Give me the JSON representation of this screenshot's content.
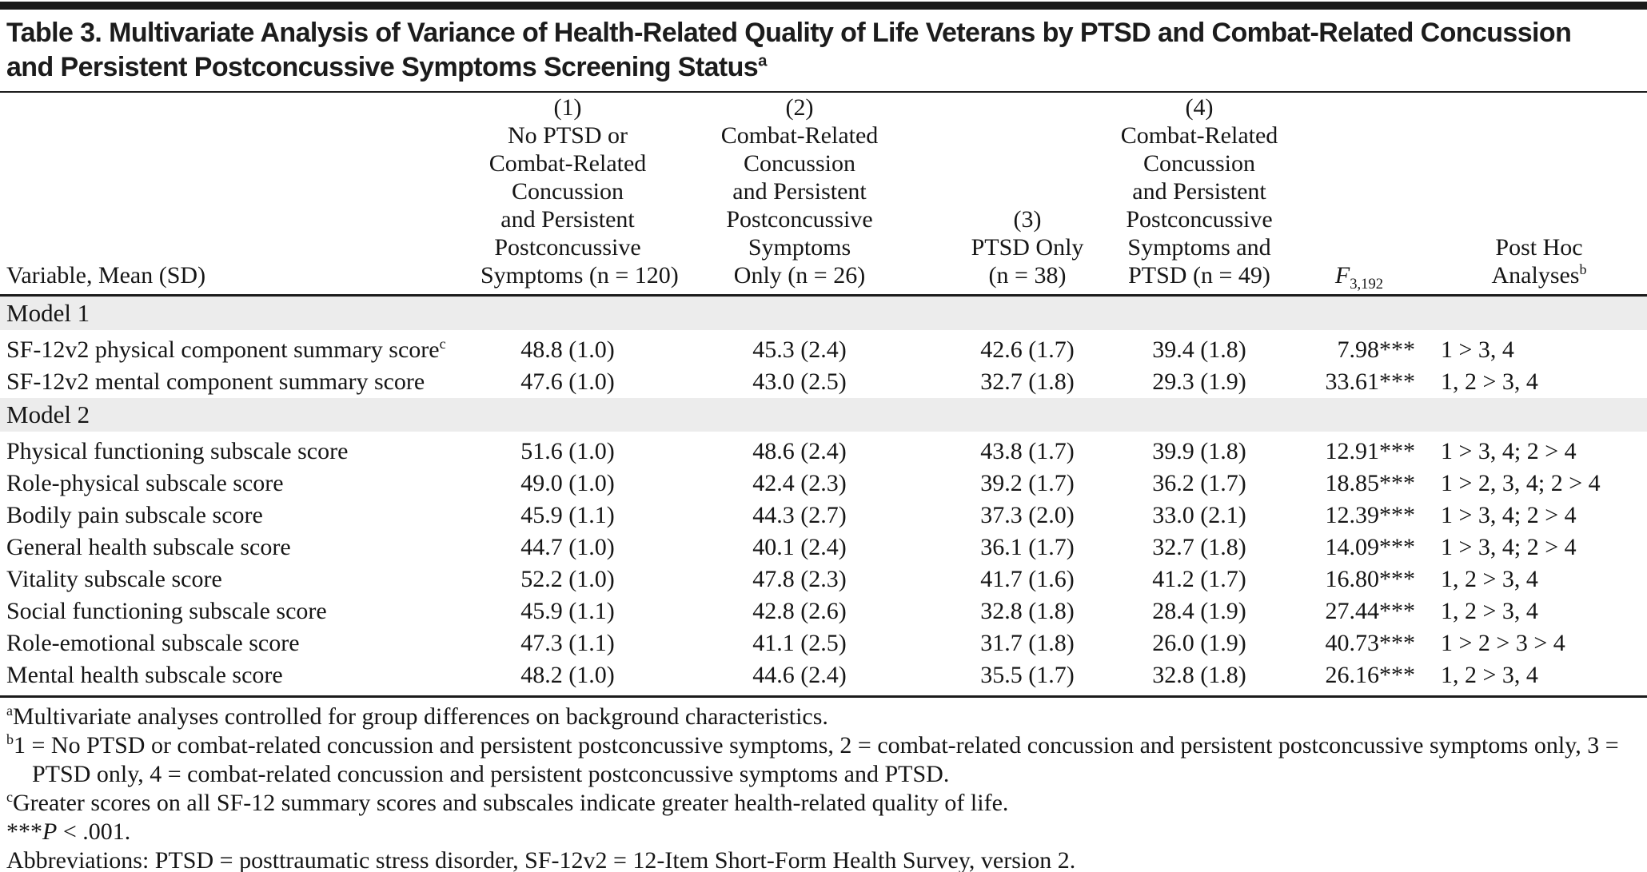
{
  "title": {
    "lines": [
      "Table 3. Multivariate Analysis of Variance of Health-Related Quality of Life Veterans by PTSD and Combat-Related Concussion",
      "and Persistent Postconcussive Symptoms Screening Status"
    ],
    "superscript": "a"
  },
  "table": {
    "variable_header": "Variable, Mean (SD)",
    "group_columns": [
      {
        "lines": [
          "(1)",
          "No PTSD or",
          "Combat-Related",
          "Concussion",
          "and Persistent",
          "Postconcussive",
          "Symptoms (n = 120)"
        ]
      },
      {
        "lines": [
          "(2)",
          "Combat-Related",
          "Concussion",
          "and Persistent",
          "Postconcussive",
          "Symptoms",
          "Only (n = 26)"
        ]
      },
      {
        "lines": [
          "(3)",
          "PTSD Only",
          "(n = 38)"
        ]
      },
      {
        "lines": [
          "(4)",
          "Combat-Related",
          "Concussion",
          "and Persistent",
          "Postconcussive",
          "Symptoms and",
          "PTSD (n = 49)"
        ]
      }
    ],
    "f_header": {
      "symbol": "F",
      "subscript": "3,192"
    },
    "posthoc_header": {
      "lines": [
        "Post Hoc",
        "Analyses"
      ],
      "superscript": "b"
    },
    "sections": [
      {
        "label": "Model 1",
        "rows": [
          {
            "variable": "SF-12v2 physical component summary score",
            "variable_sup": "c",
            "values": [
              "48.8 (1.0)",
              "45.3 (2.4)",
              "42.6 (1.7)",
              "39.4 (1.8)"
            ],
            "f": "7.98",
            "stars": "***",
            "posthoc": "1 > 3, 4"
          },
          {
            "variable": "SF-12v2 mental component summary score",
            "variable_sup": "",
            "values": [
              "47.6 (1.0)",
              "43.0 (2.5)",
              "32.7 (1.8)",
              "29.3 (1.9)"
            ],
            "f": "33.61",
            "stars": "***",
            "posthoc": "1, 2 > 3, 4"
          }
        ]
      },
      {
        "label": "Model 2",
        "rows": [
          {
            "variable": "Physical functioning subscale score",
            "variable_sup": "",
            "values": [
              "51.6 (1.0)",
              "48.6 (2.4)",
              "43.8 (1.7)",
              "39.9 (1.8)"
            ],
            "f": "12.91",
            "stars": "***",
            "posthoc": "1 > 3, 4; 2 > 4"
          },
          {
            "variable": "Role-physical subscale score",
            "variable_sup": "",
            "values": [
              "49.0 (1.0)",
              "42.4 (2.3)",
              "39.2 (1.7)",
              "36.2 (1.7)"
            ],
            "f": "18.85",
            "stars": "***",
            "posthoc": "1 > 2, 3, 4; 2 > 4"
          },
          {
            "variable": "Bodily pain subscale score",
            "variable_sup": "",
            "values": [
              "45.9 (1.1)",
              "44.3 (2.7)",
              "37.3 (2.0)",
              "33.0 (2.1)"
            ],
            "f": "12.39",
            "stars": "***",
            "posthoc": "1 > 3, 4; 2 > 4"
          },
          {
            "variable": "General health subscale score",
            "variable_sup": "",
            "values": [
              "44.7 (1.0)",
              "40.1 (2.4)",
              "36.1 (1.7)",
              "32.7 (1.8)"
            ],
            "f": "14.09",
            "stars": "***",
            "posthoc": "1 > 3, 4; 2 > 4"
          },
          {
            "variable": "Vitality subscale score",
            "variable_sup": "",
            "values": [
              "52.2 (1.0)",
              "47.8 (2.3)",
              "41.7 (1.6)",
              "41.2 (1.7)"
            ],
            "f": "16.80",
            "stars": "***",
            "posthoc": "1, 2 > 3, 4"
          },
          {
            "variable": "Social functioning subscale score",
            "variable_sup": "",
            "values": [
              "45.9 (1.1)",
              "42.8 (2.6)",
              "32.8 (1.8)",
              "28.4 (1.9)"
            ],
            "f": "27.44",
            "stars": "***",
            "posthoc": "1, 2 > 3, 4"
          },
          {
            "variable": "Role-emotional subscale score",
            "variable_sup": "",
            "values": [
              "47.3 (1.1)",
              "41.1 (2.5)",
              "31.7 (1.8)",
              "26.0 (1.9)"
            ],
            "f": "40.73",
            "stars": "***",
            "posthoc": "1 > 2 > 3 > 4"
          },
          {
            "variable": "Mental health subscale score",
            "variable_sup": "",
            "values": [
              "48.2 (1.0)",
              "44.6 (2.4)",
              "35.5 (1.7)",
              "32.8 (1.8)"
            ],
            "f": "26.16",
            "stars": "***",
            "posthoc": "1, 2 > 3, 4"
          }
        ]
      }
    ]
  },
  "footnotes": {
    "a": {
      "sup": "a",
      "text": "Multivariate analyses controlled for group differences on background characteristics."
    },
    "b": {
      "sup": "b",
      "text": "1 = No PTSD or combat-related concussion and persistent postconcussive symptoms, 2 = combat-related concussion and persistent postconcussive symptoms only, 3 = PTSD only, 4 = combat-related concussion and persistent postconcussive symptoms and PTSD."
    },
    "c": {
      "sup": "c",
      "text": "Greater scores on all SF-12 summary scores and subscales indicate greater health-related quality of life."
    },
    "significance": {
      "stars": "***",
      "p_symbol": "P",
      "text": " < .001."
    },
    "abbreviations": {
      "text": "Abbreviations: PTSD = posttraumatic stress disorder, SF-12v2 = 12-Item Short-Form Health Survey, version 2."
    }
  },
  "colors": {
    "band_gray": "#ececec",
    "rule_black": "#1b1b1b",
    "text": "#161616"
  }
}
